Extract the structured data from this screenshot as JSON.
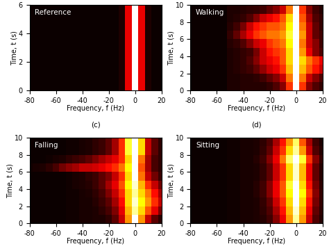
{
  "chart_data": [
    {
      "type": "heatmap",
      "label": "Reference",
      "caption": "(c)",
      "xlabel": "Frequency, f (Hz)",
      "ylabel": "Time, t (s)",
      "xlim": [
        -80,
        20
      ],
      "ylim": [
        0,
        6
      ],
      "xticks": [
        -80,
        -60,
        -40,
        -20,
        0,
        20
      ],
      "yticks": [
        0,
        2,
        4,
        6
      ],
      "x_edges": [
        -80,
        -77.5,
        -72.5,
        -67.5,
        -62.5,
        -57.5,
        -52.5,
        -47.5,
        -42.5,
        -37.5,
        -32.5,
        -27.5,
        -22.5,
        -17.5,
        -12.5,
        -7.5,
        -2.5,
        2.5,
        7.5,
        12.5,
        17.5,
        20
      ],
      "y_edges": [
        0,
        1,
        2,
        3,
        4,
        5,
        6
      ],
      "cells": [
        [
          0.02,
          0.02,
          0.02,
          0.02,
          0.02,
          0.02,
          0.02,
          0.02,
          0.02,
          0.02,
          0.02,
          0.02,
          0.02,
          0.02,
          0.05,
          0.35,
          1,
          0.35,
          0.05,
          0.02,
          0.02
        ],
        [
          0.02,
          0.02,
          0.02,
          0.02,
          0.02,
          0.02,
          0.02,
          0.02,
          0.02,
          0.02,
          0.02,
          0.02,
          0.02,
          0.02,
          0.05,
          0.35,
          1,
          0.35,
          0.05,
          0.02,
          0.02
        ],
        [
          0.02,
          0.02,
          0.02,
          0.02,
          0.02,
          0.02,
          0.02,
          0.02,
          0.02,
          0.02,
          0.02,
          0.02,
          0.02,
          0.02,
          0.05,
          0.35,
          1,
          0.35,
          0.05,
          0.02,
          0.02
        ],
        [
          0.02,
          0.02,
          0.02,
          0.02,
          0.02,
          0.02,
          0.02,
          0.02,
          0.02,
          0.02,
          0.02,
          0.02,
          0.02,
          0.02,
          0.05,
          0.35,
          1,
          0.35,
          0.05,
          0.02,
          0.02
        ],
        [
          0.02,
          0.02,
          0.02,
          0.02,
          0.02,
          0.02,
          0.02,
          0.02,
          0.02,
          0.02,
          0.02,
          0.02,
          0.02,
          0.02,
          0.05,
          0.35,
          1,
          0.35,
          0.05,
          0.02,
          0.02
        ],
        [
          0.02,
          0.02,
          0.02,
          0.02,
          0.02,
          0.02,
          0.02,
          0.02,
          0.02,
          0.02,
          0.02,
          0.02,
          0.02,
          0.02,
          0.05,
          0.35,
          1,
          0.35,
          0.05,
          0.02,
          0.02
        ]
      ]
    },
    {
      "type": "heatmap",
      "label": "Walking",
      "caption": "(d)",
      "xlabel": "Frequency, f (Hz)",
      "ylabel": "Time, t (s)",
      "xlim": [
        -80,
        20
      ],
      "ylim": [
        0,
        10
      ],
      "xticks": [
        -80,
        -60,
        -40,
        -20,
        0,
        20
      ],
      "yticks": [
        0,
        2,
        4,
        6,
        8,
        10
      ],
      "x_edges": [
        -80,
        -77.5,
        -72.5,
        -67.5,
        -62.5,
        -57.5,
        -52.5,
        -47.5,
        -42.5,
        -37.5,
        -32.5,
        -27.5,
        -22.5,
        -17.5,
        -12.5,
        -7.5,
        -2.5,
        2.5,
        7.5,
        12.5,
        17.5,
        20
      ],
      "y_edges": [
        0,
        1,
        2,
        3,
        4,
        5,
        6,
        7,
        8,
        9,
        10
      ],
      "cells": [
        [
          0.02,
          0.02,
          0.02,
          0.02,
          0.02,
          0.02,
          0.05,
          0.05,
          0.06,
          0.06,
          0.06,
          0.06,
          0.08,
          0.12,
          0.2,
          0.45,
          1,
          0.45,
          0.2,
          0.12,
          0.08
        ],
        [
          0.02,
          0.02,
          0.02,
          0.02,
          0.02,
          0.02,
          0.05,
          0.05,
          0.06,
          0.06,
          0.07,
          0.1,
          0.15,
          0.2,
          0.3,
          0.55,
          1,
          0.55,
          0.3,
          0.2,
          0.12
        ],
        [
          0.02,
          0.02,
          0.02,
          0.02,
          0.02,
          0.02,
          0.05,
          0.06,
          0.08,
          0.1,
          0.15,
          0.22,
          0.3,
          0.35,
          0.45,
          0.65,
          1,
          0.65,
          0.5,
          0.4,
          0.3
        ],
        [
          0.02,
          0.02,
          0.02,
          0.02,
          0.02,
          0.02,
          0.05,
          0.06,
          0.08,
          0.12,
          0.2,
          0.3,
          0.35,
          0.4,
          0.5,
          0.7,
          1,
          0.7,
          0.55,
          0.45,
          0.35
        ],
        [
          0.02,
          0.02,
          0.02,
          0.02,
          0.02,
          0.02,
          0.05,
          0.06,
          0.08,
          0.1,
          0.18,
          0.3,
          0.4,
          0.45,
          0.5,
          0.7,
          1,
          0.6,
          0.35,
          0.2,
          0.12
        ],
        [
          0.02,
          0.02,
          0.02,
          0.02,
          0.02,
          0.02,
          0.06,
          0.08,
          0.12,
          0.2,
          0.3,
          0.35,
          0.45,
          0.5,
          0.55,
          0.75,
          1,
          0.55,
          0.3,
          0.2,
          0.1
        ],
        [
          0.02,
          0.02,
          0.02,
          0.02,
          0.02,
          0.02,
          0.08,
          0.15,
          0.25,
          0.35,
          0.45,
          0.5,
          0.55,
          0.55,
          0.6,
          0.8,
          1,
          0.6,
          0.3,
          0.15,
          0.1
        ],
        [
          0.02,
          0.02,
          0.02,
          0.02,
          0.02,
          0.02,
          0.06,
          0.1,
          0.18,
          0.3,
          0.4,
          0.45,
          0.5,
          0.5,
          0.55,
          0.75,
          1,
          0.55,
          0.3,
          0.15,
          0.08
        ],
        [
          0.02,
          0.02,
          0.02,
          0.02,
          0.02,
          0.02,
          0.05,
          0.06,
          0.08,
          0.12,
          0.2,
          0.3,
          0.35,
          0.4,
          0.5,
          0.7,
          1,
          0.5,
          0.25,
          0.12,
          0.08
        ],
        [
          0.02,
          0.02,
          0.02,
          0.02,
          0.02,
          0.02,
          0.05,
          0.05,
          0.06,
          0.07,
          0.08,
          0.1,
          0.15,
          0.2,
          0.3,
          0.55,
          1,
          0.45,
          0.2,
          0.1,
          0.06
        ]
      ]
    },
    {
      "type": "heatmap",
      "label": "Falling",
      "xlabel": "Frequency, f (Hz)",
      "ylabel": "Time, t (s)",
      "xlim": [
        -80,
        20
      ],
      "ylim": [
        0,
        10
      ],
      "xticks": [
        -80,
        -60,
        -40,
        -20,
        0,
        20
      ],
      "yticks": [
        0,
        2,
        4,
        6,
        8,
        10
      ],
      "x_edges": [
        -80,
        -77.5,
        -72.5,
        -67.5,
        -62.5,
        -57.5,
        -52.5,
        -47.5,
        -42.5,
        -37.5,
        -32.5,
        -27.5,
        -22.5,
        -17.5,
        -12.5,
        -7.5,
        -2.5,
        2.5,
        7.5,
        12.5,
        17.5,
        20
      ],
      "y_edges": [
        0,
        1,
        2,
        3,
        4,
        5,
        6,
        7,
        8,
        9,
        10
      ],
      "cells": [
        [
          0.03,
          0.03,
          0.03,
          0.03,
          0.03,
          0.03,
          0.04,
          0.04,
          0.05,
          0.05,
          0.06,
          0.06,
          0.08,
          0.15,
          0.3,
          0.6,
          1,
          0.6,
          0.3,
          0.15,
          0.08
        ],
        [
          0.03,
          0.03,
          0.03,
          0.03,
          0.03,
          0.03,
          0.04,
          0.04,
          0.05,
          0.05,
          0.06,
          0.08,
          0.12,
          0.2,
          0.35,
          0.65,
          0.9,
          0.7,
          0.5,
          0.35,
          0.2
        ],
        [
          0.03,
          0.03,
          0.03,
          0.03,
          0.03,
          0.03,
          0.04,
          0.04,
          0.05,
          0.05,
          0.07,
          0.1,
          0.15,
          0.25,
          0.4,
          0.7,
          0.95,
          0.75,
          0.6,
          0.45,
          0.3
        ],
        [
          0.03,
          0.03,
          0.03,
          0.03,
          0.03,
          0.03,
          0.04,
          0.04,
          0.05,
          0.06,
          0.08,
          0.12,
          0.2,
          0.3,
          0.45,
          0.7,
          0.9,
          0.7,
          0.55,
          0.4,
          0.25
        ],
        [
          0.03,
          0.03,
          0.03,
          0.03,
          0.03,
          0.03,
          0.04,
          0.05,
          0.06,
          0.07,
          0.1,
          0.15,
          0.25,
          0.35,
          0.5,
          0.75,
          0.95,
          0.65,
          0.45,
          0.3,
          0.18
        ],
        [
          0.03,
          0.03,
          0.03,
          0.03,
          0.03,
          0.03,
          0.04,
          0.05,
          0.06,
          0.08,
          0.1,
          0.15,
          0.2,
          0.3,
          0.45,
          0.7,
          1,
          0.55,
          0.3,
          0.18,
          0.1
        ],
        [
          0.04,
          0.05,
          0.06,
          0.08,
          0.12,
          0.18,
          0.22,
          0.25,
          0.3,
          0.3,
          0.32,
          0.35,
          0.4,
          0.45,
          0.55,
          0.75,
          1,
          0.5,
          0.25,
          0.12,
          0.08
        ],
        [
          0.03,
          0.03,
          0.03,
          0.04,
          0.05,
          0.06,
          0.08,
          0.1,
          0.12,
          0.15,
          0.2,
          0.25,
          0.3,
          0.35,
          0.45,
          0.7,
          1,
          0.55,
          0.25,
          0.12,
          0.08
        ],
        [
          0.03,
          0.03,
          0.03,
          0.03,
          0.03,
          0.03,
          0.04,
          0.04,
          0.05,
          0.06,
          0.08,
          0.1,
          0.15,
          0.25,
          0.45,
          0.8,
          1,
          0.7,
          0.3,
          0.15,
          0.08
        ],
        [
          0.03,
          0.03,
          0.03,
          0.03,
          0.03,
          0.03,
          0.04,
          0.04,
          0.05,
          0.06,
          0.08,
          0.1,
          0.15,
          0.25,
          0.45,
          0.8,
          1,
          0.7,
          0.3,
          0.15,
          0.08
        ]
      ]
    },
    {
      "type": "heatmap",
      "label": "Sitting",
      "xlabel": "Frequency, f (Hz)",
      "ylabel": "Time, t (s)",
      "xlim": [
        -80,
        20
      ],
      "ylim": [
        0,
        10
      ],
      "xticks": [
        -80,
        -60,
        -40,
        -20,
        0,
        20
      ],
      "yticks": [
        0,
        2,
        4,
        6,
        8,
        10
      ],
      "x_edges": [
        -80,
        -77.5,
        -72.5,
        -67.5,
        -62.5,
        -57.5,
        -52.5,
        -47.5,
        -42.5,
        -37.5,
        -32.5,
        -27.5,
        -22.5,
        -17.5,
        -12.5,
        -7.5,
        -2.5,
        2.5,
        7.5,
        12.5,
        17.5,
        20
      ],
      "y_edges": [
        0,
        1,
        2,
        3,
        4,
        5,
        6,
        7,
        8,
        9,
        10
      ],
      "cells": [
        [
          0.02,
          0.02,
          0.02,
          0.02,
          0.02,
          0.02,
          0.03,
          0.03,
          0.04,
          0.04,
          0.05,
          0.06,
          0.1,
          0.2,
          0.35,
          0.6,
          0.9,
          0.6,
          0.3,
          0.12,
          0.06
        ],
        [
          0.02,
          0.02,
          0.02,
          0.02,
          0.02,
          0.02,
          0.03,
          0.03,
          0.04,
          0.04,
          0.05,
          0.07,
          0.12,
          0.25,
          0.4,
          0.65,
          0.95,
          0.65,
          0.35,
          0.15,
          0.07
        ],
        [
          0.02,
          0.02,
          0.02,
          0.02,
          0.02,
          0.02,
          0.03,
          0.03,
          0.04,
          0.04,
          0.05,
          0.08,
          0.15,
          0.3,
          0.45,
          0.7,
          1,
          0.7,
          0.4,
          0.18,
          0.08
        ],
        [
          0.02,
          0.02,
          0.02,
          0.02,
          0.02,
          0.02,
          0.03,
          0.03,
          0.04,
          0.04,
          0.06,
          0.1,
          0.2,
          0.35,
          0.5,
          0.75,
          1,
          0.75,
          0.45,
          0.2,
          0.08
        ],
        [
          0.02,
          0.02,
          0.02,
          0.02,
          0.02,
          0.02,
          0.03,
          0.03,
          0.04,
          0.04,
          0.06,
          0.1,
          0.2,
          0.35,
          0.5,
          0.8,
          1,
          0.7,
          0.4,
          0.18,
          0.07
        ],
        [
          0.02,
          0.02,
          0.02,
          0.02,
          0.02,
          0.02,
          0.03,
          0.03,
          0.04,
          0.04,
          0.05,
          0.08,
          0.15,
          0.3,
          0.45,
          0.7,
          0.95,
          0.65,
          0.35,
          0.15,
          0.06
        ],
        [
          0.02,
          0.02,
          0.02,
          0.02,
          0.02,
          0.02,
          0.03,
          0.03,
          0.04,
          0.04,
          0.05,
          0.08,
          0.15,
          0.3,
          0.45,
          0.7,
          0.95,
          0.65,
          0.35,
          0.15,
          0.06
        ],
        [
          0.02,
          0.02,
          0.02,
          0.02,
          0.02,
          0.02,
          0.03,
          0.03,
          0.04,
          0.04,
          0.06,
          0.1,
          0.2,
          0.35,
          0.55,
          0.85,
          1,
          0.8,
          0.45,
          0.2,
          0.08
        ],
        [
          0.02,
          0.02,
          0.02,
          0.02,
          0.02,
          0.02,
          0.03,
          0.03,
          0.04,
          0.04,
          0.05,
          0.08,
          0.15,
          0.3,
          0.45,
          0.7,
          0.9,
          0.6,
          0.3,
          0.12,
          0.06
        ],
        [
          0.02,
          0.02,
          0.02,
          0.02,
          0.02,
          0.02,
          0.03,
          0.03,
          0.04,
          0.04,
          0.05,
          0.07,
          0.12,
          0.25,
          0.4,
          0.6,
          0.85,
          0.5,
          0.25,
          0.1,
          0.05
        ]
      ]
    }
  ]
}
